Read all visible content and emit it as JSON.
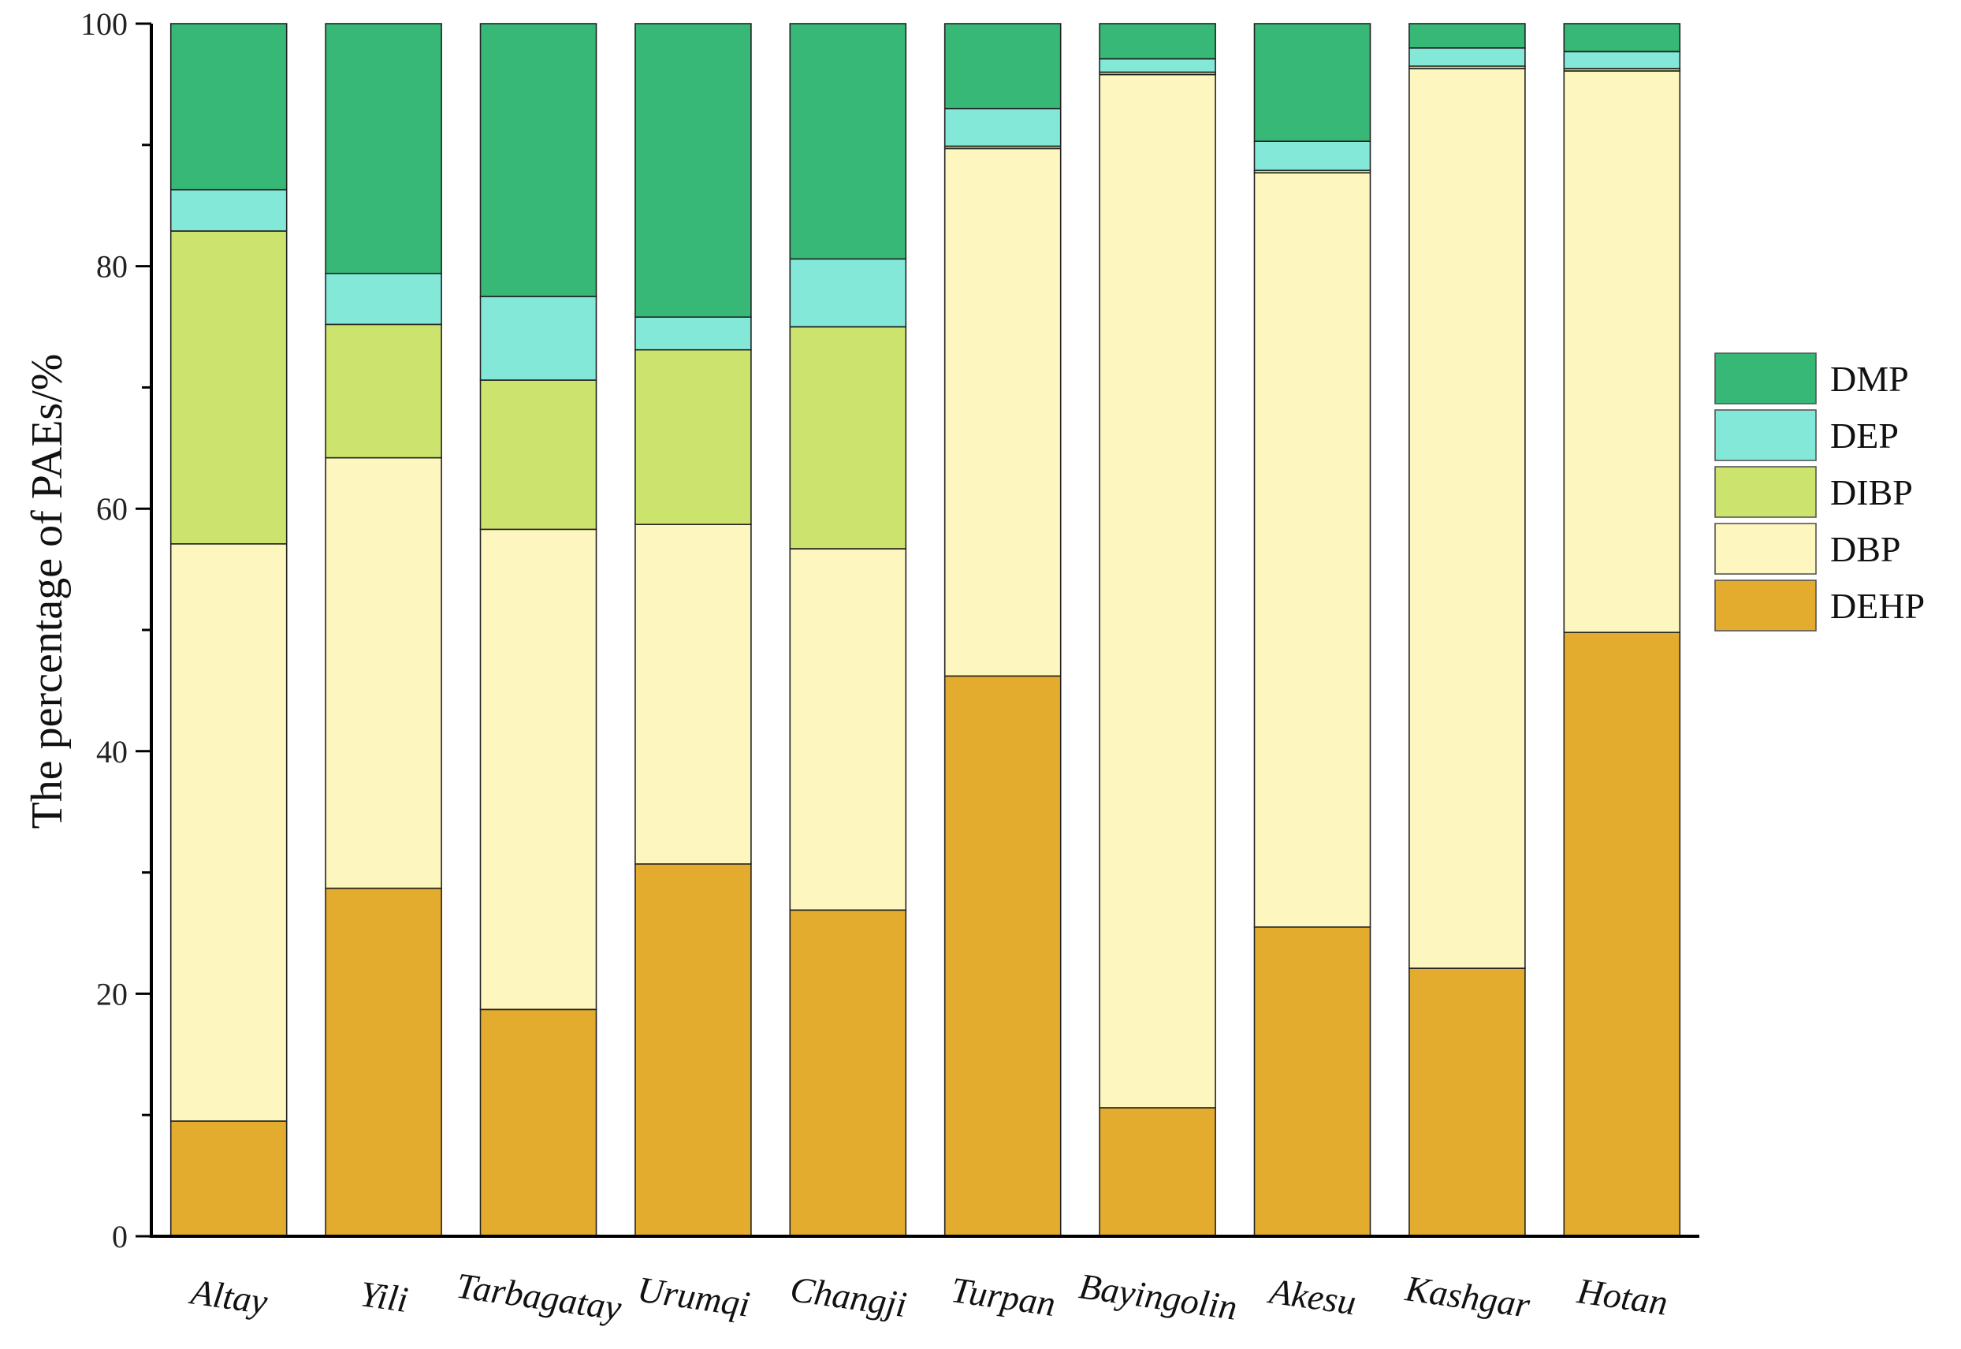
{
  "chart_data": {
    "type": "bar",
    "stacked": true,
    "title": "",
    "xlabel": "",
    "ylabel": "The percentage of  PAEs/%",
    "ylim": [
      0,
      100
    ],
    "yticks": [
      "0",
      "20",
      "40",
      "60",
      "80",
      "100"
    ],
    "legend_position": "right",
    "categories": [
      "Altay",
      "Yili",
      "Tarbagatay",
      "Urumqi",
      "Changji",
      "Turpan",
      "Bayingolin",
      "Akesu",
      "Kashgar",
      "Hotan"
    ],
    "series": [
      {
        "name": "DEHP",
        "color": "#E3AC2E",
        "values": [
          9.5,
          28.7,
          18.7,
          30.7,
          26.9,
          46.2,
          10.6,
          25.5,
          22.1,
          49.8
        ]
      },
      {
        "name": "DBP",
        "color": "#FDF6BE",
        "values": [
          47.6,
          35.5,
          39.6,
          28.0,
          29.8,
          43.5,
          85.2,
          62.2,
          74.2,
          46.3
        ]
      },
      {
        "name": "DIBP",
        "color": "#CCE46D",
        "values": [
          25.8,
          11.0,
          12.3,
          14.4,
          18.3,
          0.2,
          0.2,
          0.2,
          0.2,
          0.2
        ]
      },
      {
        "name": "DEP",
        "color": "#84E8D9",
        "values": [
          3.4,
          4.2,
          6.9,
          2.7,
          5.6,
          3.1,
          1.1,
          2.4,
          1.5,
          1.4
        ]
      },
      {
        "name": "DMP",
        "color": "#38B877",
        "values": [
          13.7,
          20.6,
          22.5,
          24.2,
          19.4,
          7.0,
          2.9,
          9.7,
          2.0,
          2.3
        ]
      }
    ],
    "legend_order": [
      "DMP",
      "DEP",
      "DIBP",
      "DBP",
      "DEHP"
    ]
  }
}
